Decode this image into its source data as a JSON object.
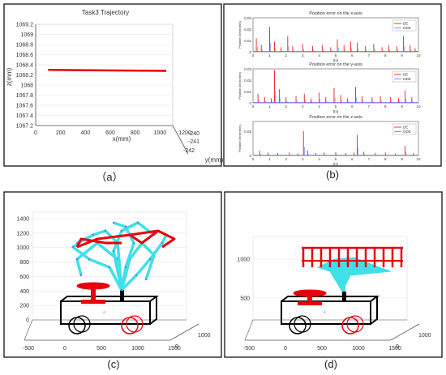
{
  "panel_captions": {
    "a": "（a）",
    "b": "(b)",
    "c": "(c)",
    "d": "(d)"
  },
  "colors": {
    "red": "#e8000b",
    "cyan": "#3fe0e8",
    "blue": "#6f6fff",
    "black": "#000000",
    "axis": "#555555",
    "grid": "#e6e6e6"
  },
  "chart_data": [
    {
      "id": "a",
      "type": "line",
      "title": "Task3 Trajectory",
      "xlabel": "x(mm)",
      "ylabel": "y(mm)",
      "zlabel": "z(mm)",
      "x_ticks": [
        "0",
        "200",
        "400",
        "600",
        "800",
        "1000",
        "1200"
      ],
      "y_ticks": [
        "-240",
        "-241",
        "-242"
      ],
      "z_ticks": [
        "1067.2",
        "1067.4",
        "1067.6",
        "1067.8",
        "1068",
        "1068.2",
        "1068.4",
        "1068.6",
        "1068.8",
        "1069",
        "1069.2"
      ],
      "xlim": [
        0,
        1200
      ],
      "zlim": [
        1067.2,
        1069.2
      ],
      "series": [
        {
          "x": [
            100,
            1050
          ],
          "z": [
            1068.3,
            1068.28
          ]
        }
      ]
    },
    {
      "id": "b",
      "type": "line",
      "subplots": [
        {
          "title": "Position error on the x-axis",
          "ylabel": "Position Error(mm)",
          "xlabel": "t(s)",
          "y_ticks": [
            "0",
            "0.01",
            "0.02",
            "0.03"
          ],
          "ylim": [
            0,
            0.03
          ],
          "x_ticks": [
            "0",
            "1",
            "2",
            "3",
            "4",
            "5",
            "6",
            "7",
            "8",
            "9",
            "10"
          ],
          "xlim": [
            0,
            10
          ],
          "legend": [
            "DE",
            "ODE"
          ],
          "peaks": [
            [
              0.2,
              0.012
            ],
            [
              0.5,
              0.006
            ],
            [
              1.0,
              0.022
            ],
            [
              1.3,
              0.009
            ],
            [
              1.7,
              0.004
            ],
            [
              2.1,
              0.014
            ],
            [
              2.4,
              0.005
            ],
            [
              3.0,
              0.007
            ],
            [
              3.6,
              0.005
            ],
            [
              4.2,
              0.006
            ],
            [
              4.7,
              0.004
            ],
            [
              5.1,
              0.011
            ],
            [
              5.5,
              0.006
            ],
            [
              5.9,
              0.009
            ],
            [
              6.3,
              0.008
            ],
            [
              6.8,
              0.005
            ],
            [
              7.3,
              0.007
            ],
            [
              7.8,
              0.004
            ],
            [
              8.2,
              0.006
            ],
            [
              8.7,
              0.005
            ],
            [
              9.1,
              0.014
            ],
            [
              9.5,
              0.006
            ],
            [
              9.8,
              0.003
            ]
          ]
        },
        {
          "title": "Position error on the y-axis",
          "ylabel": "Position Error(mm)",
          "xlabel": "t(s)",
          "y_ticks": [
            "0",
            "0.01",
            "0.02",
            "0.03"
          ],
          "ylim": [
            0,
            0.03
          ],
          "x_ticks": [
            "0",
            "1",
            "2",
            "3",
            "4",
            "5",
            "6",
            "7",
            "8",
            "9",
            "10"
          ],
          "xlim": [
            0,
            10
          ],
          "legend": [
            "DE",
            "ODE"
          ],
          "peaks": [
            [
              0.3,
              0.008
            ],
            [
              0.7,
              0.005
            ],
            [
              1.1,
              0.004
            ],
            [
              1.3,
              0.029
            ],
            [
              1.6,
              0.012
            ],
            [
              2.0,
              0.005
            ],
            [
              2.6,
              0.006
            ],
            [
              3.1,
              0.008
            ],
            [
              3.5,
              0.004
            ],
            [
              4.0,
              0.009
            ],
            [
              4.4,
              0.005
            ],
            [
              4.9,
              0.013
            ],
            [
              5.3,
              0.007
            ],
            [
              5.7,
              0.004
            ],
            [
              6.2,
              0.014
            ],
            [
              6.6,
              0.006
            ],
            [
              7.2,
              0.005
            ],
            [
              7.7,
              0.006
            ],
            [
              8.3,
              0.005
            ],
            [
              8.8,
              0.004
            ],
            [
              9.2,
              0.011
            ],
            [
              9.6,
              0.005
            ]
          ]
        },
        {
          "title": "Position error on the z-axis",
          "ylabel": "Position Error(mm)",
          "xlabel": "t(s)",
          "y_ticks": [
            "0",
            "0.05"
          ],
          "ylim": [
            0,
            0.07
          ],
          "x_ticks": [
            "0",
            "1",
            "2",
            "3",
            "4",
            "5",
            "6",
            "7",
            "8",
            "9",
            "10"
          ],
          "xlim": [
            0,
            10
          ],
          "legend": [
            "DE",
            "ODE"
          ],
          "peaks": [
            [
              0.4,
              0.01
            ],
            [
              0.9,
              0.006
            ],
            [
              1.5,
              0.005
            ],
            [
              2.2,
              0.006
            ],
            [
              2.7,
              0.004
            ],
            [
              3.05,
              0.05
            ],
            [
              3.3,
              0.01
            ],
            [
              3.8,
              0.005
            ],
            [
              4.3,
              0.006
            ],
            [
              5.0,
              0.007
            ],
            [
              5.6,
              0.005
            ],
            [
              6.1,
              0.006
            ],
            [
              6.3,
              0.042
            ],
            [
              6.7,
              0.008
            ],
            [
              7.4,
              0.005
            ],
            [
              8.0,
              0.006
            ],
            [
              8.6,
              0.004
            ],
            [
              9.2,
              0.02
            ],
            [
              9.7,
              0.005
            ]
          ]
        }
      ]
    },
    {
      "id": "c",
      "type": "scatter",
      "z_ticks": [
        "0",
        "200",
        "400",
        "600",
        "800",
        "1000",
        "1200",
        "1400"
      ],
      "x_ticks": [
        "-500",
        "0",
        "500",
        "1000",
        "1500"
      ],
      "y_ticks": [
        "0",
        "1000"
      ]
    },
    {
      "id": "d",
      "type": "scatter",
      "z_ticks": [
        "500",
        "1000"
      ],
      "x_ticks": [
        "-500",
        "0",
        "500",
        "1000",
        "1500"
      ],
      "y_ticks": [
        "0",
        "1000"
      ]
    }
  ]
}
